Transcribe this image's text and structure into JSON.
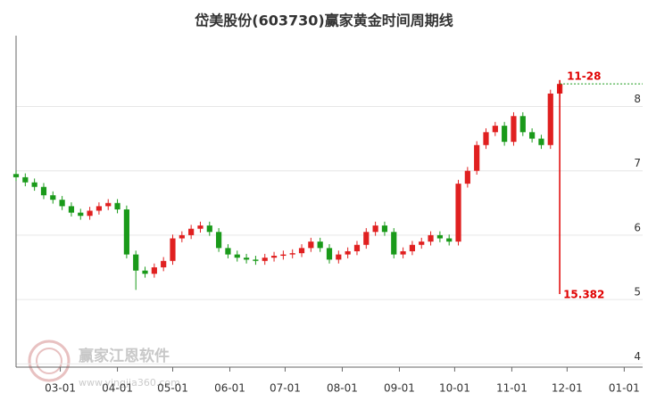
{
  "chart_data": {
    "type": "candlestick",
    "title": "岱美股份(603730)赢家黄金时间周期线",
    "x": [
      36,
      41,
      46,
      51,
      56,
      61,
      66,
      71,
      76,
      81,
      86,
      91,
      96,
      101,
      106,
      111,
      116,
      121,
      126,
      131,
      136,
      141,
      146,
      151,
      156,
      161,
      166,
      171,
      176,
      181,
      186,
      191,
      196,
      201,
      206,
      211,
      216,
      221,
      226,
      231,
      236,
      241,
      246,
      251,
      256,
      261,
      266,
      271,
      276,
      281,
      286,
      291,
      296,
      301,
      306,
      311,
      316,
      321,
      326,
      331
    ],
    "open": [
      6.95,
      6.9,
      6.82,
      6.75,
      6.62,
      6.55,
      6.45,
      6.35,
      6.3,
      6.38,
      6.45,
      6.5,
      6.4,
      5.7,
      5.45,
      5.4,
      5.5,
      5.6,
      5.95,
      6.0,
      6.1,
      6.15,
      6.05,
      5.8,
      5.7,
      5.65,
      5.62,
      5.6,
      5.65,
      5.68,
      5.7,
      5.72,
      5.8,
      5.9,
      5.8,
      5.62,
      5.7,
      5.75,
      5.85,
      6.05,
      6.15,
      6.05,
      5.7,
      5.75,
      5.85,
      5.9,
      6.0,
      5.95,
      5.9,
      6.8,
      7.0,
      7.4,
      7.6,
      7.7,
      7.45,
      7.85,
      7.6,
      7.5,
      7.4,
      8.2
    ],
    "high": [
      7.01,
      6.96,
      6.88,
      6.81,
      6.68,
      6.61,
      6.51,
      6.41,
      6.44,
      6.51,
      6.56,
      6.56,
      6.46,
      5.76,
      5.51,
      5.56,
      5.66,
      6.01,
      6.06,
      6.16,
      6.21,
      6.21,
      6.11,
      5.86,
      5.76,
      5.71,
      5.68,
      5.71,
      5.74,
      5.76,
      5.78,
      5.86,
      5.96,
      5.96,
      5.86,
      5.76,
      5.81,
      5.91,
      6.11,
      6.21,
      6.21,
      6.11,
      5.81,
      5.91,
      5.96,
      6.06,
      6.06,
      6.01,
      6.86,
      7.06,
      7.46,
      7.66,
      7.76,
      7.76,
      7.91,
      7.91,
      7.66,
      7.56,
      8.26,
      8.41
    ],
    "low": [
      6.84,
      6.76,
      6.69,
      6.56,
      6.49,
      6.39,
      6.29,
      6.24,
      6.24,
      6.32,
      6.39,
      6.34,
      5.64,
      5.15,
      5.34,
      5.34,
      5.44,
      5.54,
      5.89,
      5.94,
      6.04,
      5.99,
      5.74,
      5.64,
      5.59,
      5.56,
      5.54,
      5.54,
      5.59,
      5.62,
      5.64,
      5.66,
      5.74,
      5.74,
      5.56,
      5.56,
      5.64,
      5.69,
      5.79,
      5.99,
      5.99,
      5.64,
      5.64,
      5.69,
      5.79,
      5.84,
      5.89,
      5.84,
      5.84,
      6.74,
      6.94,
      7.34,
      7.54,
      7.39,
      7.39,
      7.54,
      7.44,
      7.34,
      7.34,
      8.14
    ],
    "close": [
      6.9,
      6.82,
      6.75,
      6.62,
      6.55,
      6.45,
      6.35,
      6.3,
      6.38,
      6.45,
      6.5,
      6.4,
      5.7,
      5.45,
      5.4,
      5.5,
      5.6,
      5.95,
      6.0,
      6.1,
      6.15,
      6.05,
      5.8,
      5.7,
      5.65,
      5.62,
      5.6,
      5.65,
      5.68,
      5.7,
      5.72,
      5.8,
      5.9,
      5.8,
      5.62,
      5.7,
      5.75,
      5.85,
      6.05,
      6.15,
      6.05,
      5.7,
      5.75,
      5.85,
      5.9,
      6.0,
      5.95,
      5.9,
      6.8,
      7.0,
      7.4,
      7.6,
      7.7,
      7.45,
      7.85,
      7.6,
      7.5,
      7.4,
      8.2,
      8.35
    ],
    "up_color": "#e02020",
    "down_color": "#1a9a1a",
    "xlim": [
      36,
      376
    ],
    "xticks": [
      {
        "value": 60,
        "label": "03-01"
      },
      {
        "value": 91,
        "label": "04-01"
      },
      {
        "value": 121,
        "label": "05-01"
      },
      {
        "value": 152,
        "label": "06-01"
      },
      {
        "value": 182,
        "label": "07-01"
      },
      {
        "value": 213,
        "label": "08-01"
      },
      {
        "value": 244,
        "label": "09-01"
      },
      {
        "value": 274,
        "label": "10-01"
      },
      {
        "value": 305,
        "label": "11-01"
      },
      {
        "value": 335,
        "label": "12-01"
      },
      {
        "value": 366,
        "label": "01-01"
      }
    ],
    "ylim": [
      3.95,
      9.1
    ],
    "yticks": [
      4,
      5,
      6,
      7,
      8
    ],
    "grid": true,
    "annotations": {
      "date_label": "11-28",
      "value_label": "15.382"
    },
    "watermark": "赢家江恩软件",
    "watermark_url": "www.yingjia360.com"
  }
}
